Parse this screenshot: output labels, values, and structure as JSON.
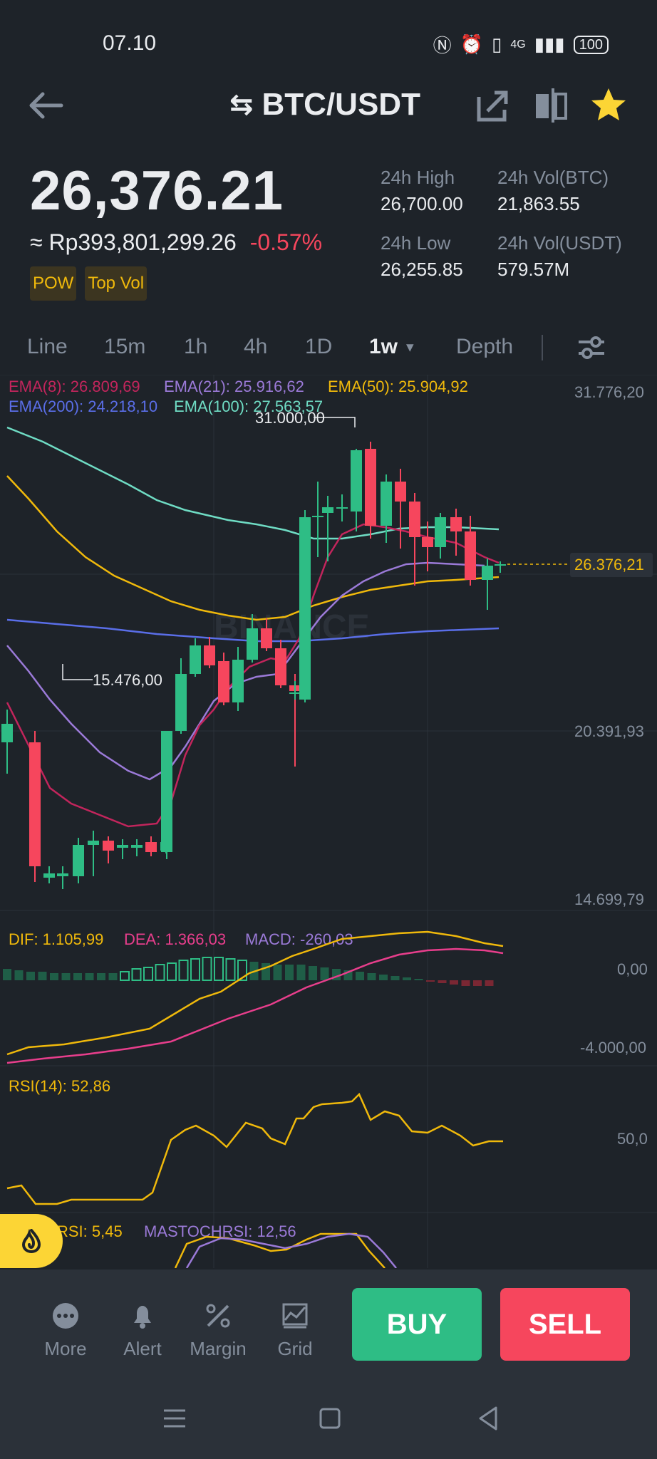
{
  "status_bar": {
    "time": "07.10",
    "network": "4G",
    "battery": "100"
  },
  "header": {
    "pair": "BTC/USDT"
  },
  "ticker": {
    "last_price": "26,376.21",
    "fiat_value": "≈ Rp393,801,299.26",
    "change": "-0.57%",
    "tags": [
      "POW",
      "Top Vol"
    ],
    "high_label": "24h High",
    "high_value": "26,700.00",
    "vol_btc_label": "24h Vol(BTC)",
    "vol_btc_value": "21,863.55",
    "low_label": "24h Low",
    "low_value": "26,255.85",
    "vol_usdt_label": "24h Vol(USDT)",
    "vol_usdt_value": "579.57M"
  },
  "timeframes": [
    "Line",
    "15m",
    "1h",
    "4h",
    "1D",
    "1w",
    "Depth"
  ],
  "active_timeframe": "1w",
  "chart": {
    "ema_labels": {
      "ema8": "EMA(8): 26.809,69",
      "ema21": "EMA(21): 25.916,62",
      "ema50": "EMA(50): 25.904,92",
      "ema200": "EMA(200): 24.218,10",
      "ema100": "EMA(100): 27.563,57"
    },
    "price_axis": [
      "31.776,20",
      "20.391,93",
      "14.699,79"
    ],
    "current_price_tag": "26.376,21",
    "high_marker": "31.000,00",
    "low_marker": "15.476,00",
    "watermark": "BINANCE",
    "macd_labels": {
      "dif": "DIF: 1.105,99",
      "dea": "DEA: 1.366,03",
      "macd": "MACD: -260,03"
    },
    "macd_axis": [
      "0,00",
      "-4.000,00"
    ],
    "rsi_label": "RSI(14): 52,86",
    "rsi_axis": "50,0",
    "stochrsi_label": "RSI: 5,45",
    "mastochrsi_label": "MASTOCHRSI: 12,56",
    "colors": {
      "up": "#2ebd85",
      "down": "#f6465d",
      "ema8": "#c2255c",
      "ema21": "#9b7ad8",
      "ema50": "#f0b90b",
      "ema100": "#6fdcc4",
      "ema200": "#5a6ee8"
    }
  },
  "actions": {
    "more": "More",
    "alert": "Alert",
    "margin": "Margin",
    "grid": "Grid",
    "buy": "BUY",
    "sell": "SELL"
  }
}
